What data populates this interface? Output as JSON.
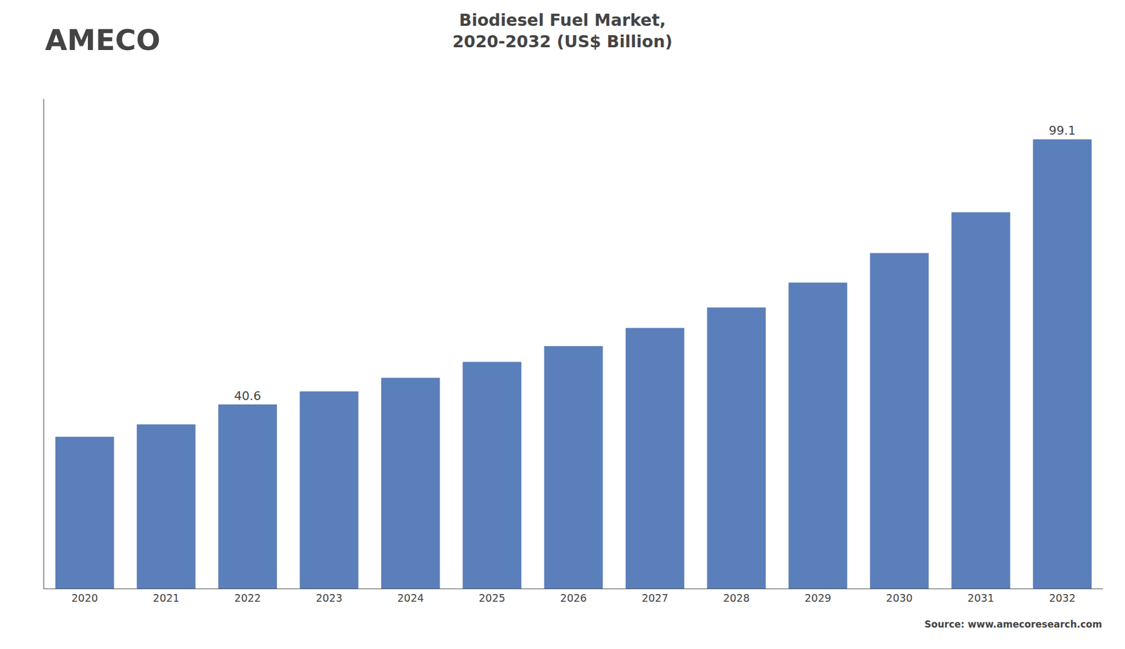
{
  "chart_data": {
    "type": "bar",
    "title": "Biodiesel Fuel Market,\n2020-2032 (US$ Billion)",
    "annotations": [
      "AMECO",
      "Source: www.amecoresearch.com"
    ],
    "categories": [
      "2020",
      "2021",
      "2022",
      "2023",
      "2024",
      "2025",
      "2026",
      "2027",
      "2028",
      "2029",
      "2030",
      "2031",
      "2032"
    ],
    "values": [
      33.5,
      36.2,
      40.6,
      43.5,
      46.5,
      50.0,
      53.5,
      57.5,
      62.0,
      67.5,
      74.0,
      83.0,
      99.1
    ],
    "value_labels": [
      null,
      null,
      "40.6",
      null,
      null,
      null,
      null,
      null,
      null,
      null,
      null,
      null,
      "99.1"
    ],
    "data_labels": true,
    "color": "#5b7fba",
    "ylim": [
      0,
      108
    ],
    "tick_labels": "x",
    "grid": false
  }
}
